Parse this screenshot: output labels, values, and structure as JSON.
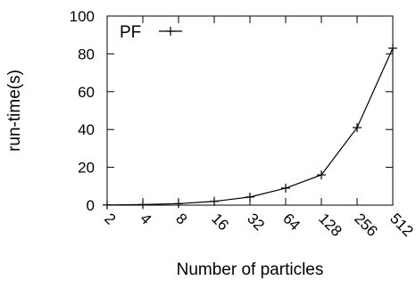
{
  "chart_data": {
    "type": "line",
    "x": [
      "2",
      "4",
      "8",
      "16",
      "32",
      "64",
      "128",
      "256",
      "512"
    ],
    "series": [
      {
        "name": "PF",
        "values": [
          0.1,
          0.3,
          0.8,
          2,
          4.3,
          9,
          16,
          41,
          83
        ],
        "color": "#000000",
        "marker": "plus"
      }
    ],
    "xlabel": "Number of particles",
    "ylabel": "run-time(s)",
    "ylim": [
      0,
      100
    ],
    "yticks": [
      "0",
      "20",
      "40",
      "60",
      "80",
      "100"
    ],
    "x_tick_rotation": "diagonal",
    "legend_position": "top-left",
    "grid": false
  }
}
